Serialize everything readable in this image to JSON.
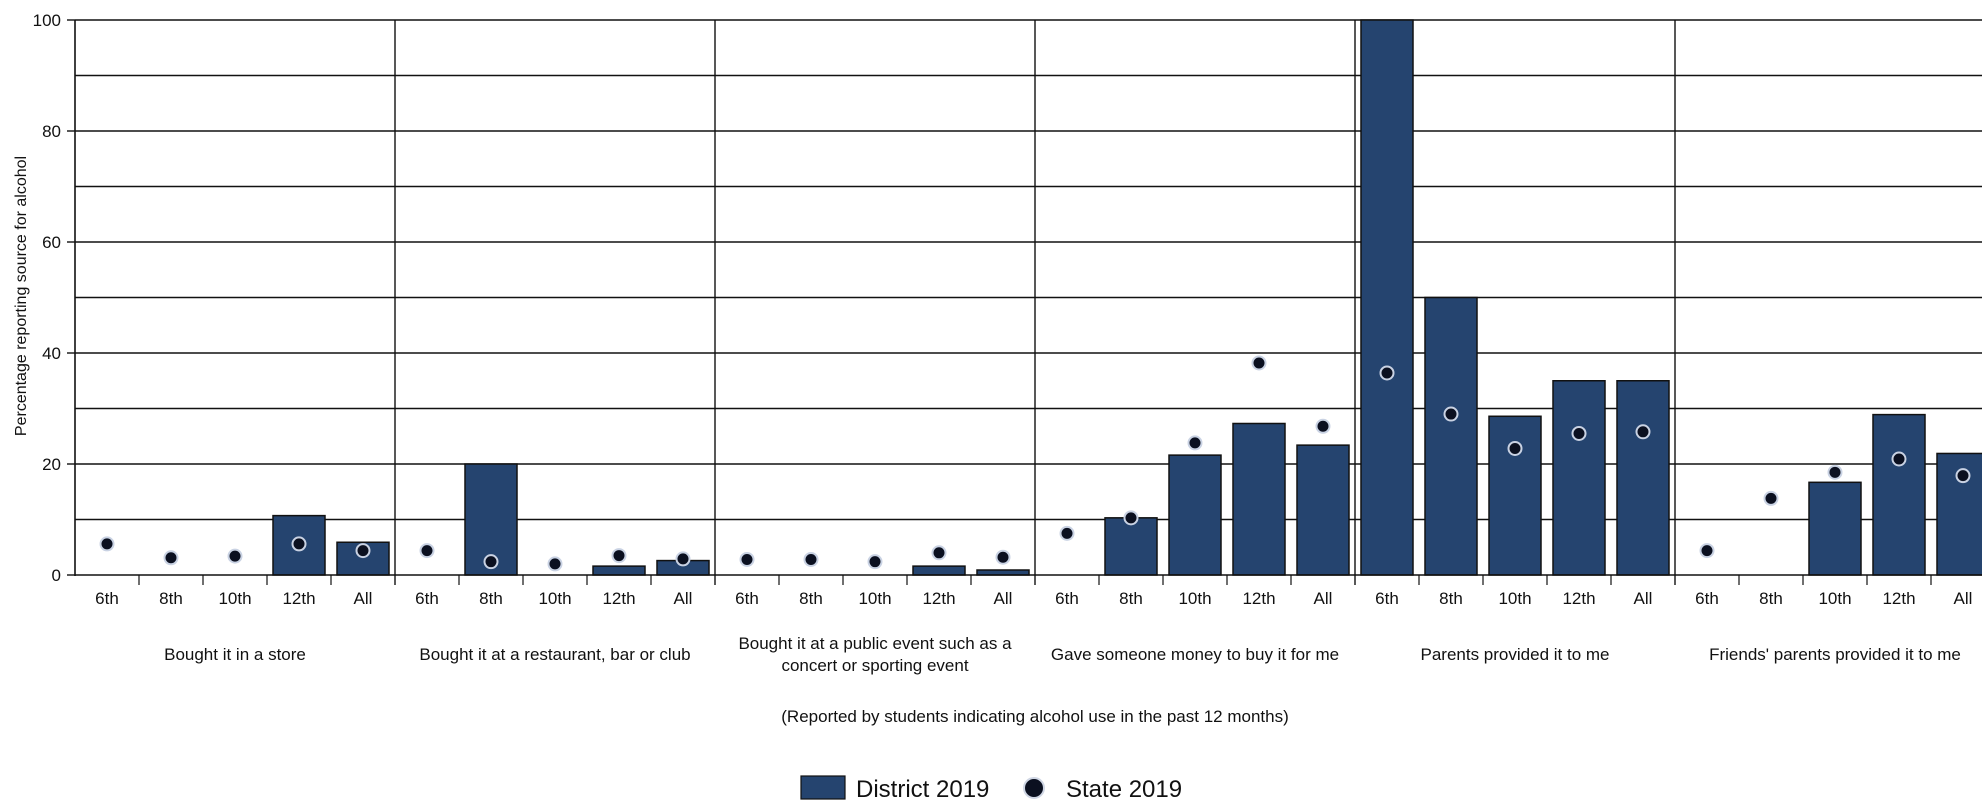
{
  "chart_data": {
    "type": "bar",
    "ylabel": "Percentage reporting source for alcohol",
    "xlabel": "(Reported by students indicating alcohol use in the past 12 months)",
    "ylim": [
      0,
      100
    ],
    "y_ticks": [
      "0",
      "20",
      "40",
      "60",
      "80",
      "100"
    ],
    "grid": true,
    "legend_position": "bottom-center",
    "categories": [
      "6th",
      "8th",
      "10th",
      "12th",
      "All"
    ],
    "groups": [
      "Bought it in a store",
      "Bought it at a restaurant, bar or club",
      "Bought it at a public event such as a concert or sporting event",
      "Gave someone money to buy it for me",
      "Parents provided it to me",
      "Friends' parents provided it to me"
    ],
    "series": [
      {
        "name": "District 2019",
        "marker": "bar",
        "color": "#25446f",
        "values": [
          [
            0,
            0,
            0,
            10.7,
            5.9
          ],
          [
            0,
            20,
            0,
            1.6,
            2.6
          ],
          [
            0,
            0,
            0,
            1.6,
            0.9
          ],
          [
            0,
            10.3,
            21.6,
            27.3,
            23.4
          ],
          [
            100,
            50,
            28.6,
            35,
            35
          ],
          [
            0,
            0,
            16.7,
            28.9,
            21.9
          ]
        ]
      },
      {
        "name": "State 2019",
        "marker": "dot",
        "color": "#0b1020",
        "values": [
          [
            5.6,
            3.1,
            3.4,
            5.6,
            4.4
          ],
          [
            4.4,
            2.4,
            2.0,
            3.5,
            2.9
          ],
          [
            2.8,
            2.8,
            2.4,
            4.0,
            3.2
          ],
          [
            7.5,
            10.3,
            23.8,
            38.2,
            26.8
          ],
          [
            36.4,
            29.0,
            22.8,
            25.5,
            25.8
          ],
          [
            4.4,
            13.8,
            18.5,
            20.9,
            17.9
          ]
        ]
      }
    ]
  }
}
